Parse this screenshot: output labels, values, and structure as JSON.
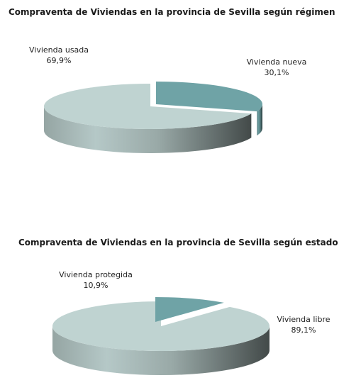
{
  "chart_data": [
    {
      "type": "pie",
      "title": "Compraventa de Viviendas en la provincia de Sevilla según régimen",
      "categories": [
        "Vivienda nueva",
        "Vivienda usada"
      ],
      "values": [
        30.1,
        69.9
      ],
      "value_labels": [
        "30,1%",
        "69,9%"
      ],
      "colors": [
        "#6fa3a6",
        "#bfd3d1"
      ],
      "style": "3d-exploded"
    },
    {
      "type": "pie",
      "title": "Compraventa de Viviendas en la provincia de Sevilla según estado",
      "categories": [
        "Vivienda protegida",
        "Vivienda libre"
      ],
      "values": [
        10.9,
        89.1
      ],
      "value_labels": [
        "10,9%",
        "89,1%"
      ],
      "colors": [
        "#6fa3a6",
        "#bfd3d1"
      ],
      "style": "3d-exploded"
    }
  ]
}
